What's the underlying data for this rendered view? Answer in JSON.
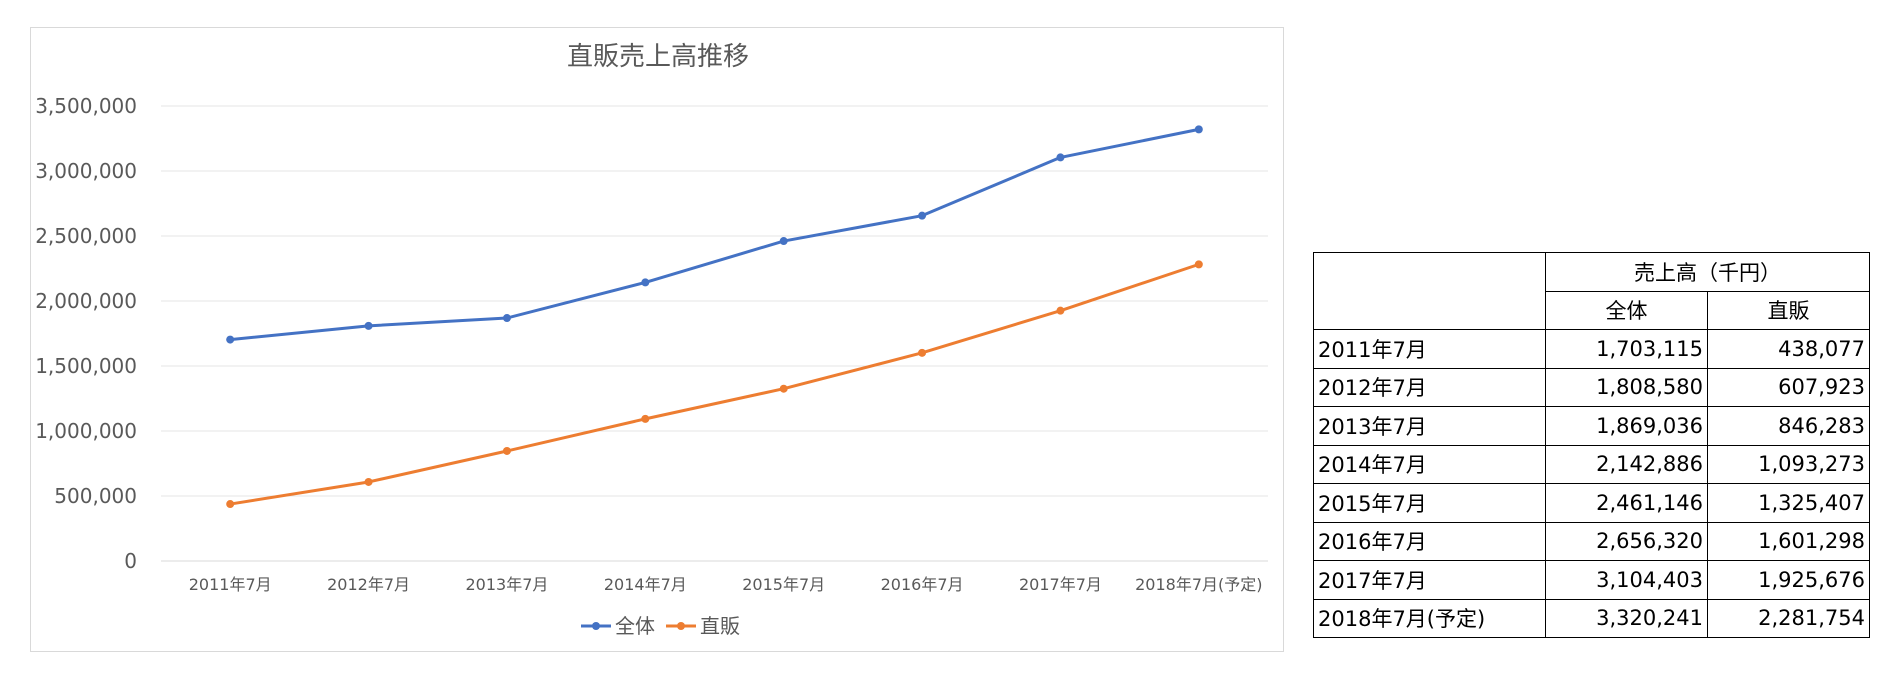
{
  "chart_data": {
    "type": "line",
    "title": "直販売上高推移",
    "categories": [
      "2011年7月",
      "2012年7月",
      "2013年7月",
      "2014年7月",
      "2015年7月",
      "2016年7月",
      "2017年7月",
      "2018年7月(予定)"
    ],
    "series": [
      {
        "name": "全体",
        "color": "#4472c4",
        "values": [
          1703115,
          1808580,
          1869036,
          2142886,
          2461146,
          2656320,
          3104403,
          3320241
        ]
      },
      {
        "name": "直販",
        "color": "#ed7d31",
        "values": [
          438077,
          607923,
          846283,
          1093273,
          1325407,
          1601298,
          1925676,
          2281754
        ]
      }
    ],
    "ylim": [
      0,
      3500000
    ],
    "yticks": [
      "0",
      "500,000",
      "1,000,000",
      "1,500,000",
      "2,000,000",
      "2,500,000",
      "3,000,000",
      "3,500,000"
    ],
    "grid": true,
    "legend": "bottom"
  },
  "table": {
    "header_group": "売上高（千円）",
    "col1": "全体",
    "col2": "直販",
    "rows": [
      {
        "label": "2011年7月",
        "total": "1,703,115",
        "direct": "438,077"
      },
      {
        "label": "2012年7月",
        "total": "1,808,580",
        "direct": "607,923"
      },
      {
        "label": "2013年7月",
        "total": "1,869,036",
        "direct": "846,283"
      },
      {
        "label": "2014年7月",
        "total": "2,142,886",
        "direct": "1,093,273"
      },
      {
        "label": "2015年7月",
        "total": "2,461,146",
        "direct": "1,325,407"
      },
      {
        "label": "2016年7月",
        "total": "2,656,320",
        "direct": "1,601,298"
      },
      {
        "label": "2017年7月",
        "total": "3,104,403",
        "direct": "1,925,676"
      },
      {
        "label": "2018年7月(予定)",
        "total": "3,320,241",
        "direct": "2,281,754"
      }
    ]
  }
}
